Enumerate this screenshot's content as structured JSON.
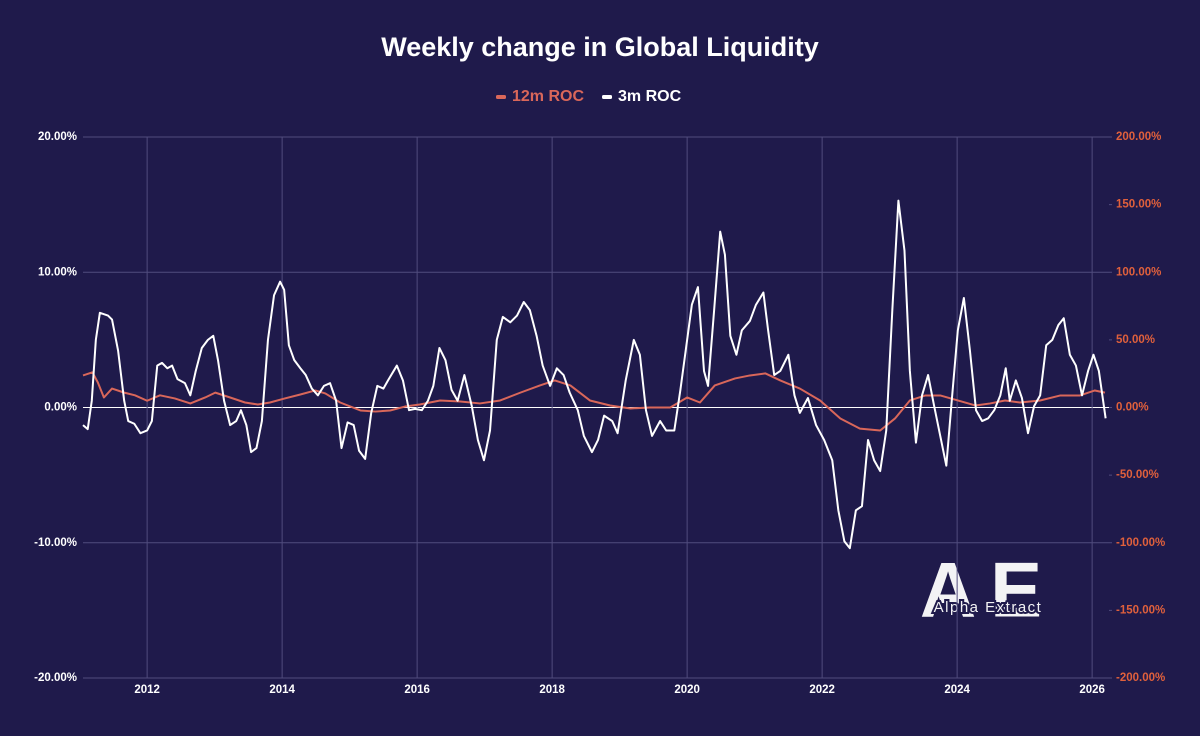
{
  "chart_data": {
    "type": "line",
    "title": "Weekly change in Global Liquidity",
    "legend": "top",
    "grid": true,
    "xlim": [
      2011.05,
      2026.25
    ],
    "xticks": [
      2012,
      2014,
      2016,
      2018,
      2020,
      2022,
      2024,
      2026
    ],
    "ylim": [
      -20,
      20
    ],
    "yticks": [
      {
        "value": -20,
        "label": "-20.00%"
      },
      {
        "value": -10,
        "label": "-10.00%"
      },
      {
        "value": 0,
        "label": "0.00%"
      },
      {
        "value": 10,
        "label": "10.00%"
      },
      {
        "value": 20,
        "label": "20.00%"
      }
    ],
    "y2lim": [
      -200,
      200
    ],
    "y2ticks": [
      {
        "value": -200,
        "label": "-200.00%"
      },
      {
        "value": -150,
        "label": "-150.00%"
      },
      {
        "value": -100,
        "label": "-100.00%"
      },
      {
        "value": -50,
        "label": "-50.00%"
      },
      {
        "value": 0,
        "label": "0.00%"
      },
      {
        "value": 50,
        "label": "50.00%"
      },
      {
        "value": 100,
        "label": "100.00%"
      },
      {
        "value": 150,
        "label": "150.00%"
      },
      {
        "value": 200,
        "label": "200.00%"
      }
    ],
    "y2_color": "#e0603c",
    "watermark": {
      "logo": "AE",
      "text": "Alpha Extract"
    },
    "series": [
      {
        "name": "12m ROC",
        "color": "#d9675a",
        "axis": "y2",
        "x": [
          2011.05,
          2011.19,
          2011.27,
          2011.36,
          2011.48,
          2011.66,
          2011.82,
          2012.0,
          2012.19,
          2012.41,
          2012.64,
          2012.86,
          2013.01,
          2013.23,
          2013.45,
          2013.64,
          2013.82,
          2014.04,
          2014.27,
          2014.49,
          2014.64,
          2014.86,
          2015.16,
          2015.38,
          2015.6,
          2015.82,
          2016.04,
          2016.34,
          2016.64,
          2016.93,
          2017.23,
          2017.53,
          2017.82,
          2018.04,
          2018.27,
          2018.56,
          2018.86,
          2019.16,
          2019.45,
          2019.75,
          2020.0,
          2020.19,
          2020.41,
          2020.71,
          2020.93,
          2021.16,
          2021.38,
          2021.67,
          2021.97,
          2022.27,
          2022.56,
          2022.86,
          2023.08,
          2023.3,
          2023.53,
          2023.75,
          2024.01,
          2024.27,
          2024.49,
          2024.71,
          2024.93,
          2025.23,
          2025.53,
          2025.82,
          2026.04,
          2026.19
        ],
        "values": [
          23.7,
          26,
          18.5,
          7.4,
          14,
          11,
          9,
          5,
          9,
          6.7,
          3,
          7.4,
          11,
          7.4,
          3.7,
          2.2,
          3.7,
          6.7,
          9.6,
          12.6,
          10.4,
          3.7,
          -2.2,
          -3,
          -2.2,
          0.7,
          2.2,
          5.2,
          4.4,
          3,
          5.2,
          11,
          16.3,
          20,
          16.3,
          5.2,
          1.5,
          -0.7,
          0,
          0,
          7.4,
          3.7,
          16.3,
          21.5,
          23.7,
          25.2,
          20,
          14,
          5.2,
          -8.1,
          -15.6,
          -17,
          -8.1,
          5.2,
          8.9,
          8.9,
          5.2,
          1.5,
          3,
          5.2,
          3.7,
          5.2,
          8.9,
          8.9,
          12.6,
          11
        ]
      },
      {
        "name": "3m ROC",
        "color": "#ffffff",
        "x": [
          2011.05,
          2011.12,
          2011.18,
          2011.24,
          2011.3,
          2011.42,
          2011.48,
          2011.57,
          2011.66,
          2011.72,
          2011.81,
          2011.9,
          2012.0,
          2012.07,
          2012.15,
          2012.22,
          2012.3,
          2012.37,
          2012.45,
          2012.56,
          2012.64,
          2012.72,
          2012.81,
          2012.9,
          2012.98,
          2013.05,
          2013.14,
          2013.23,
          2013.32,
          2013.39,
          2013.47,
          2013.54,
          2013.62,
          2013.7,
          2013.79,
          2013.88,
          2013.97,
          2014.03,
          2014.1,
          2014.18,
          2014.27,
          2014.35,
          2014.44,
          2014.53,
          2014.62,
          2014.71,
          2014.8,
          2014.88,
          2014.97,
          2015.06,
          2015.14,
          2015.23,
          2015.32,
          2015.41,
          2015.5,
          2015.58,
          2015.7,
          2015.79,
          2015.88,
          2015.97,
          2016.07,
          2016.16,
          2016.24,
          2016.33,
          2016.42,
          2016.51,
          2016.6,
          2016.7,
          2016.81,
          2016.9,
          2016.99,
          2017.08,
          2017.18,
          2017.27,
          2017.38,
          2017.48,
          2017.58,
          2017.67,
          2017.77,
          2017.86,
          2017.97,
          2018.07,
          2018.17,
          2018.26,
          2018.38,
          2018.47,
          2018.59,
          2018.68,
          2018.77,
          2018.89,
          2018.97,
          2019.09,
          2019.21,
          2019.3,
          2019.39,
          2019.48,
          2019.6,
          2019.69,
          2019.81,
          2019.9,
          2020.0,
          2020.07,
          2020.16,
          2020.25,
          2020.31,
          2020.4,
          2020.49,
          2020.56,
          2020.64,
          2020.73,
          2020.81,
          2020.93,
          2021.02,
          2021.13,
          2021.2,
          2021.29,
          2021.38,
          2021.5,
          2021.59,
          2021.67,
          2021.79,
          2021.91,
          2022.03,
          2022.15,
          2022.24,
          2022.33,
          2022.41,
          2022.5,
          2022.59,
          2022.68,
          2022.77,
          2022.86,
          2022.95,
          2023.04,
          2023.13,
          2023.22,
          2023.3,
          2023.39,
          2023.48,
          2023.57,
          2023.66,
          2023.75,
          2023.84,
          2023.92,
          2024.01,
          2024.1,
          2024.19,
          2024.28,
          2024.37,
          2024.46,
          2024.55,
          2024.64,
          2024.72,
          2024.78,
          2024.87,
          2024.96,
          2025.05,
          2025.14,
          2025.23,
          2025.32,
          2025.41,
          2025.5,
          2025.58,
          2025.67,
          2025.76,
          2025.85,
          2025.94,
          2026.02,
          2026.1,
          2026.2
        ],
        "values": [
          -1.3,
          -1.6,
          0.5,
          5,
          7,
          6.8,
          6.5,
          4.2,
          0.5,
          -1,
          -1.2,
          -1.9,
          -1.7,
          -1,
          3.1,
          3.3,
          2.9,
          3.1,
          2.1,
          1.8,
          0.9,
          2.7,
          4.4,
          5,
          5.3,
          3.5,
          0.5,
          -1.3,
          -1,
          -0.2,
          -1.3,
          -3.3,
          -3,
          -1,
          5,
          8.3,
          9.3,
          8.7,
          4.6,
          3.5,
          2.9,
          2.4,
          1.4,
          0.9,
          1.6,
          1.8,
          0.5,
          -3,
          -1.1,
          -1.3,
          -3.2,
          -3.8,
          -0.4,
          1.6,
          1.4,
          2.1,
          3.1,
          2,
          -0.2,
          -0.1,
          -0.2,
          0.5,
          1.6,
          4.4,
          3.5,
          1.3,
          0.5,
          2.4,
          0.1,
          -2.4,
          -3.9,
          -1.7,
          5,
          6.7,
          6.3,
          6.8,
          7.8,
          7.2,
          5.3,
          3.1,
          1.6,
          2.9,
          2.4,
          1.1,
          -0.2,
          -2.1,
          -3.3,
          -2.4,
          -0.6,
          -1,
          -1.9,
          2,
          5,
          3.9,
          -0.2,
          -2.1,
          -1,
          -1.7,
          -1.7,
          1.3,
          5,
          7.6,
          8.9,
          2.7,
          1.6,
          7.2,
          13,
          11.3,
          5.3,
          3.9,
          5.7,
          6.4,
          7.6,
          8.5,
          5.7,
          2.4,
          2.7,
          3.9,
          0.9,
          -0.4,
          0.7,
          -1.3,
          -2.4,
          -3.9,
          -7.6,
          -9.9,
          -10.4,
          -7.6,
          -7.3,
          -2.4,
          -3.9,
          -4.7,
          -1.7,
          7.2,
          15.3,
          11.6,
          2.7,
          -2.6,
          0.9,
          2.4,
          0.1,
          -2.1,
          -4.3,
          0.5,
          5.7,
          8.1,
          4.2,
          -0.2,
          -1,
          -0.8,
          -0.2,
          0.9,
          2.9,
          0.5,
          2,
          0.7,
          -1.9,
          0.1,
          0.9,
          4.6,
          5,
          6.1,
          6.6,
          3.9,
          3.1,
          0.9,
          2.7,
          3.9,
          2.7,
          -0.8
        ]
      }
    ]
  }
}
